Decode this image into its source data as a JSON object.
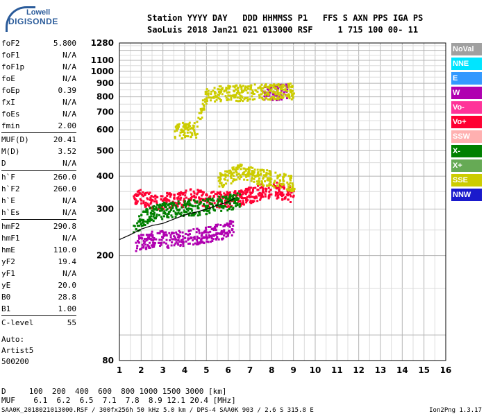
{
  "logo": {
    "line1": "Lowell",
    "line2": "DIGISONDE"
  },
  "header": {
    "row1": "Station YYYY DAY   DDD HHMMSS P1   FFS S AXN PPS IGA PS",
    "row2": "SaoLuis 2018 Jan21 021 013000 RSF     1 715 100 00- 11"
  },
  "params": [
    {
      "label": "foF2",
      "value": "5.800"
    },
    {
      "label": "foF1",
      "value": "N/A"
    },
    {
      "label": "foF1p",
      "value": "N/A"
    },
    {
      "label": "foE",
      "value": "N/A"
    },
    {
      "label": "foEp",
      "value": "0.39"
    },
    {
      "label": "fxI",
      "value": "N/A"
    },
    {
      "label": "foEs",
      "value": "N/A"
    },
    {
      "label": "fmin",
      "value": "2.00"
    },
    {
      "label": "MUF(D)",
      "value": "20.41"
    },
    {
      "label": "M(D)",
      "value": "3.52"
    },
    {
      "label": "D",
      "value": "N/A"
    },
    {
      "label": "h`F",
      "value": "260.0"
    },
    {
      "label": "h`F2",
      "value": "260.0"
    },
    {
      "label": "h`E",
      "value": "N/A"
    },
    {
      "label": "h`Es",
      "value": "N/A"
    },
    {
      "label": "hmF2",
      "value": "290.8"
    },
    {
      "label": "hmF1",
      "value": "N/A"
    },
    {
      "label": "hmE",
      "value": "110.0"
    },
    {
      "label": "yF2",
      "value": "19.4"
    },
    {
      "label": "yF1",
      "value": "N/A"
    },
    {
      "label": "yE",
      "value": "20.0"
    },
    {
      "label": "B0",
      "value": "28.8"
    },
    {
      "label": "B1",
      "value": "1.00"
    },
    {
      "label": "C-level",
      "value": "55"
    }
  ],
  "auto": [
    "Auto:",
    "Artist5",
    "500200"
  ],
  "legend": [
    {
      "name": "NoVal",
      "color": "#a0a0a0"
    },
    {
      "name": "NNE",
      "color": "#00e5ff"
    },
    {
      "name": "E",
      "color": "#3399ff"
    },
    {
      "name": "W",
      "color": "#b000b0"
    },
    {
      "name": "Vo-",
      "color": "#ff3399"
    },
    {
      "name": "Vo+",
      "color": "#ff0033"
    },
    {
      "name": "SSW",
      "color": "#ffb0b0"
    },
    {
      "name": "X-",
      "color": "#008000"
    },
    {
      "name": "X+",
      "color": "#66aa55"
    },
    {
      "name": "SSE",
      "color": "#cccc00"
    },
    {
      "name": "NNW",
      "color": "#1a1acc"
    }
  ],
  "footer": {
    "row_d": "D     100  200  400  600  800 1000 1500 3000 [km]",
    "row_muf": "MUF    6.1  6.2  6.5  7.1  7.8  8.9 12.1 20.4 [MHz]",
    "info": "SAA0K_2018021013000.RSF / 300fx256h 50 kHz 5.0 km / DPS-4 SAA0K 903 / 2.6 S 315.8 E",
    "version": "Ion2Png 1.3.17"
  },
  "chart_data": {
    "type": "scatter",
    "title": "",
    "xlabel": "",
    "ylabel": "",
    "x_ticks": [
      1,
      2,
      3,
      4,
      5,
      6,
      7,
      8,
      9,
      10,
      11,
      12,
      13,
      14,
      15,
      16
    ],
    "y_ticks": [
      80,
      200,
      300,
      400,
      500,
      600,
      700,
      800,
      900,
      1000,
      1100,
      1280
    ],
    "y_scale": "log",
    "xlim": [
      1,
      16
    ],
    "ylim": [
      80,
      1280
    ],
    "grid": true,
    "series": [
      {
        "name": "Vo+",
        "color": "#ff0033",
        "traces": [
          {
            "x": [
              1.6,
              2.2,
              2.8,
              3.3,
              3.8,
              4.4,
              5.0,
              5.6,
              6.2,
              6.8,
              7.4,
              8.0,
              8.6,
              9.0
            ],
            "y": [
              340,
              330,
              320,
              330,
              330,
              340,
              330,
              330,
              330,
              340,
              350,
              360,
              350,
              340
            ]
          }
        ]
      },
      {
        "name": "W",
        "color": "#b000b0",
        "traces": [
          {
            "x": [
              1.7,
              2.2,
              2.7,
              3.2,
              3.7,
              4.2,
              4.7,
              5.2,
              5.7,
              6.2
            ],
            "y": [
              225,
              230,
              235,
              232,
              235,
              238,
              240,
              245,
              250,
              260
            ]
          },
          {
            "x": [
              7.6,
              8.0,
              8.4,
              8.7
            ],
            "y": [
              835,
              840,
              845,
              845
            ]
          }
        ]
      },
      {
        "name": "SSE",
        "color": "#cccc00",
        "traces": [
          {
            "x": [
              3.5,
              4.0,
              4.5,
              5.0,
              5.5,
              6.0,
              6.5,
              7.0,
              7.5,
              8.0,
              8.5,
              9.0
            ],
            "y": [
              600,
              605,
              600,
              830,
              830,
              830,
              835,
              840,
              840,
              845,
              845,
              850
            ]
          },
          {
            "x": [
              5.5,
              6.0,
              6.5,
              7.0,
              7.5,
              8.0,
              8.5,
              9.0
            ],
            "y": [
              390,
              400,
              420,
              410,
              400,
              395,
              385,
              380
            ]
          }
        ]
      },
      {
        "name": "X-",
        "color": "#008000",
        "traces": [
          {
            "x": [
              1.6,
              2.2,
              3.0,
              4.0,
              5.0,
              6.0,
              6.5
            ],
            "y": [
              255,
              285,
              300,
              305,
              310,
              320,
              330
            ]
          }
        ]
      }
    ],
    "scaled_profile": {
      "name": "profile",
      "color": "#000000",
      "x": [
        1.0,
        1.5,
        2.0,
        2.5,
        3.0,
        3.5,
        4.0,
        4.5,
        5.0,
        5.5,
        6.0,
        6.3
      ],
      "y": [
        230,
        240,
        252,
        260,
        265,
        275,
        285,
        292,
        300,
        310,
        320,
        330
      ]
    }
  }
}
